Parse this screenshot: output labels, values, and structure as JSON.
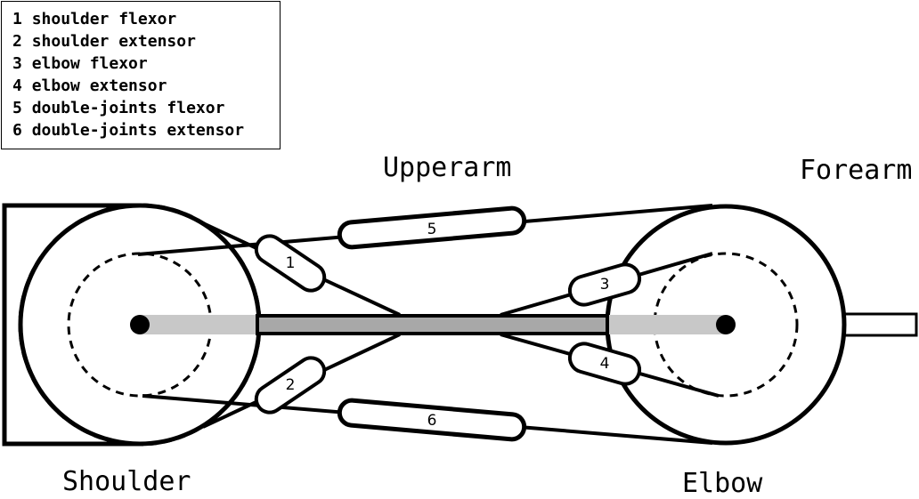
{
  "legend": {
    "items": [
      {
        "number": "1",
        "label": "shoulder flexor"
      },
      {
        "number": "2",
        "label": "shoulder extensor"
      },
      {
        "number": "3",
        "label": "elbow flexor"
      },
      {
        "number": "4",
        "label": "elbow extensor"
      },
      {
        "number": "5",
        "label": "double-joints flexor"
      },
      {
        "number": "6",
        "label": "double-joints extensor"
      }
    ]
  },
  "labels": {
    "upperarm": "Upperarm",
    "forearm": "Forearm",
    "shoulder": "Shoulder",
    "elbow": "Elbow"
  },
  "muscles": [
    {
      "number": "1"
    },
    {
      "number": "2"
    },
    {
      "number": "3"
    },
    {
      "number": "4"
    },
    {
      "number": "5"
    },
    {
      "number": "6"
    }
  ]
}
